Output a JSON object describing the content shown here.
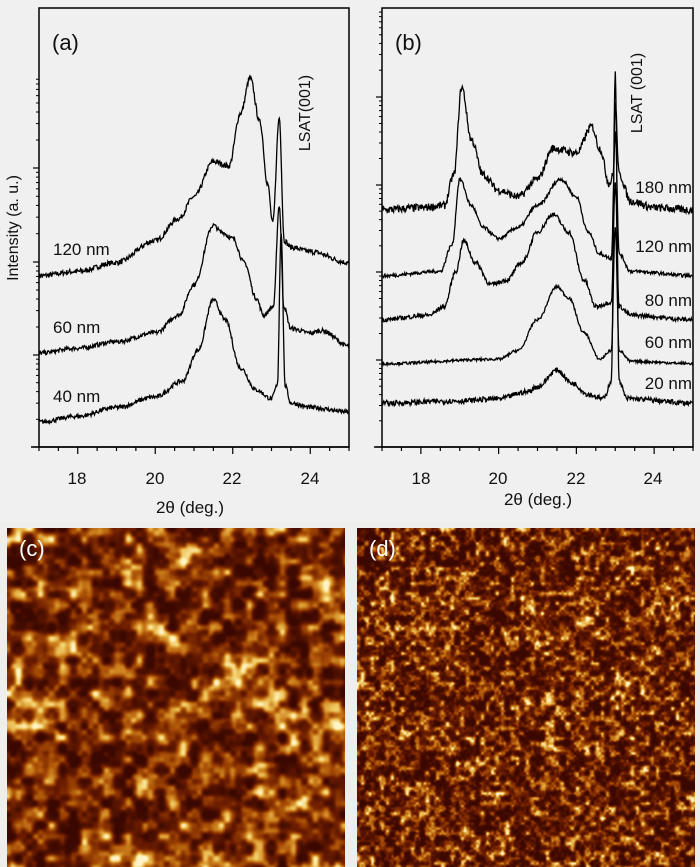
{
  "chart_data": [
    {
      "type": "line",
      "panel_label": "(a)",
      "xlabel": "2θ (deg.)",
      "ylabel": "Intensity (a. u.)",
      "xlim": [
        17,
        25
      ],
      "xticks": [
        18,
        20,
        22,
        24
      ],
      "yscale": "log",
      "ytick_labels": false,
      "annotation": "LSAT(001)",
      "line_color": "#000000",
      "series": [
        {
          "name": "120 nm",
          "noise": 0.006,
          "points": [
            [
              17,
              0.39
            ],
            [
              18,
              0.4
            ],
            [
              19,
              0.42
            ],
            [
              20,
              0.47
            ],
            [
              20.6,
              0.52
            ],
            [
              21,
              0.57
            ],
            [
              21.5,
              0.65
            ],
            [
              21.9,
              0.64
            ],
            [
              22.2,
              0.76
            ],
            [
              22.45,
              0.84
            ],
            [
              22.7,
              0.74
            ],
            [
              22.9,
              0.6
            ],
            [
              23.03,
              0.51
            ],
            [
              23.2,
              0.75
            ],
            [
              23.33,
              0.47
            ],
            [
              23.5,
              0.455
            ],
            [
              24,
              0.445
            ],
            [
              25,
              0.42
            ]
          ]
        },
        {
          "name": "60 nm",
          "noise": 0.005,
          "points": [
            [
              17,
              0.214
            ],
            [
              18,
              0.225
            ],
            [
              19,
              0.24
            ],
            [
              20,
              0.26
            ],
            [
              20.6,
              0.3
            ],
            [
              21,
              0.37
            ],
            [
              21.5,
              0.505
            ],
            [
              21.7,
              0.49
            ],
            [
              22.0,
              0.475
            ],
            [
              22.3,
              0.42
            ],
            [
              22.6,
              0.34
            ],
            [
              22.8,
              0.3
            ],
            [
              23.05,
              0.32
            ],
            [
              23.2,
              0.55
            ],
            [
              23.32,
              0.32
            ],
            [
              23.5,
              0.27
            ],
            [
              24,
              0.26
            ],
            [
              24.3,
              0.265
            ],
            [
              25,
              0.23
            ]
          ]
        },
        {
          "name": "40 nm",
          "noise": 0.005,
          "points": [
            [
              17,
              0.057
            ],
            [
              18,
              0.07
            ],
            [
              19,
              0.09
            ],
            [
              20,
              0.114
            ],
            [
              20.7,
              0.15
            ],
            [
              21.1,
              0.22
            ],
            [
              21.5,
              0.335
            ],
            [
              21.8,
              0.29
            ],
            [
              22.2,
              0.18
            ],
            [
              22.6,
              0.13
            ],
            [
              23.0,
              0.11
            ],
            [
              23.15,
              0.14
            ],
            [
              23.25,
              0.49
            ],
            [
              23.35,
              0.14
            ],
            [
              23.5,
              0.1
            ],
            [
              24,
              0.09
            ],
            [
              25,
              0.08
            ]
          ]
        }
      ]
    },
    {
      "type": "line",
      "panel_label": "(b)",
      "xlabel": "2θ (deg.)",
      "xlim": [
        17,
        25
      ],
      "xticks": [
        18,
        20,
        22,
        24
      ],
      "yscale": "log",
      "ytick_labels": false,
      "annotation": "LSAT (001)",
      "line_color": "#000000",
      "series": [
        {
          "name": "180 nm",
          "noise": 0.009,
          "points": [
            [
              17,
              0.54
            ],
            [
              18,
              0.545
            ],
            [
              18.6,
              0.55
            ],
            [
              18.85,
              0.62
            ],
            [
              19.05,
              0.82
            ],
            [
              19.3,
              0.7
            ],
            [
              19.6,
              0.62
            ],
            [
              20,
              0.585
            ],
            [
              20.5,
              0.57
            ],
            [
              21,
              0.61
            ],
            [
              21.4,
              0.68
            ],
            [
              22,
              0.67
            ],
            [
              22.4,
              0.73
            ],
            [
              22.6,
              0.68
            ],
            [
              22.85,
              0.6
            ],
            [
              22.95,
              0.62
            ],
            [
              23.0,
              0.78
            ],
            [
              23.1,
              0.62
            ],
            [
              23.4,
              0.56
            ],
            [
              24,
              0.545
            ],
            [
              25,
              0.54
            ]
          ]
        },
        {
          "name": "120 nm",
          "noise": 0.004,
          "points": [
            [
              17,
              0.39
            ],
            [
              18.5,
              0.4
            ],
            [
              18.8,
              0.46
            ],
            [
              19.0,
              0.61
            ],
            [
              19.3,
              0.55
            ],
            [
              19.6,
              0.5
            ],
            [
              20,
              0.475
            ],
            [
              20.5,
              0.5
            ],
            [
              21,
              0.55
            ],
            [
              21.6,
              0.61
            ],
            [
              22.0,
              0.57
            ],
            [
              22.3,
              0.49
            ],
            [
              22.6,
              0.44
            ],
            [
              22.9,
              0.43
            ],
            [
              23.0,
              0.72
            ],
            [
              23.1,
              0.44
            ],
            [
              23.4,
              0.4
            ],
            [
              25,
              0.39
            ]
          ]
        },
        {
          "name": "80 nm",
          "noise": 0.005,
          "points": [
            [
              17,
              0.29
            ],
            [
              18.2,
              0.3
            ],
            [
              18.6,
              0.32
            ],
            [
              18.9,
              0.4
            ],
            [
              19.1,
              0.47
            ],
            [
              19.4,
              0.42
            ],
            [
              19.8,
              0.37
            ],
            [
              20.2,
              0.38
            ],
            [
              20.6,
              0.42
            ],
            [
              21,
              0.49
            ],
            [
              21.4,
              0.53
            ],
            [
              21.8,
              0.49
            ],
            [
              22.2,
              0.38
            ],
            [
              22.5,
              0.32
            ],
            [
              22.9,
              0.33
            ],
            [
              23.0,
              0.6
            ],
            [
              23.1,
              0.32
            ],
            [
              23.4,
              0.3
            ],
            [
              25,
              0.29
            ]
          ]
        },
        {
          "name": "60 nm",
          "noise": 0.003,
          "points": [
            [
              17,
              0.19
            ],
            [
              20,
              0.2
            ],
            [
              20.5,
              0.22
            ],
            [
              21,
              0.29
            ],
            [
              21.5,
              0.365
            ],
            [
              21.8,
              0.34
            ],
            [
              22.2,
              0.26
            ],
            [
              22.6,
              0.2
            ],
            [
              22.9,
              0.22
            ],
            [
              23.0,
              0.5
            ],
            [
              23.1,
              0.22
            ],
            [
              23.4,
              0.195
            ],
            [
              25,
              0.19
            ]
          ]
        },
        {
          "name": "20 nm",
          "noise": 0.006,
          "points": [
            [
              17,
              0.1
            ],
            [
              19,
              0.105
            ],
            [
              20,
              0.11
            ],
            [
              20.7,
              0.125
            ],
            [
              21,
              0.137
            ],
            [
              21.5,
              0.175
            ],
            [
              21.9,
              0.145
            ],
            [
              22.3,
              0.12
            ],
            [
              22.7,
              0.11
            ],
            [
              22.9,
              0.15
            ],
            [
              23.0,
              0.85
            ],
            [
              23.1,
              0.15
            ],
            [
              23.3,
              0.11
            ],
            [
              25,
              0.1
            ]
          ]
        }
      ]
    }
  ],
  "afm": {
    "c": {
      "label": "(c)",
      "grain": "coarse"
    },
    "d": {
      "label": "(d)",
      "grain": "fine"
    },
    "colormap": [
      "#3a0800",
      "#6e1e00",
      "#a44a05",
      "#cf8420",
      "#f0c860",
      "#fff4c8"
    ]
  }
}
